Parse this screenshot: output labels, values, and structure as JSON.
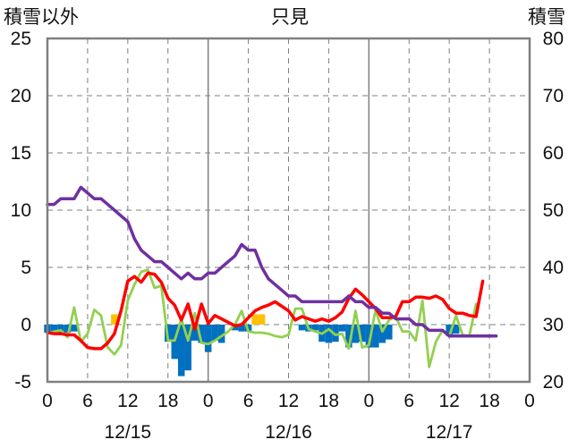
{
  "chart_data": {
    "type": "line",
    "title": "只見",
    "ylabel_left": "積雪以外",
    "ylabel_right": "積雪",
    "x_tick_labels": [
      "0",
      "6",
      "12",
      "18",
      "0",
      "6",
      "12",
      "18",
      "0",
      "6",
      "12",
      "18",
      "0"
    ],
    "date_labels": [
      "12/15",
      "12/16",
      "12/17"
    ],
    "ylim_left": [
      -5,
      25
    ],
    "ylim_right": [
      20,
      80
    ],
    "y_ticks_left": [
      -5,
      0,
      5,
      10,
      15,
      20,
      25
    ],
    "y_ticks_right": [
      20,
      30,
      40,
      50,
      60,
      70,
      80
    ],
    "grid": true,
    "colors": {
      "snow_depth": "#7030a0",
      "temperature": "#ff0000",
      "humidity_like": "#92d050",
      "precip_pos": "#ffc000",
      "precip_neg": "#0070c0"
    },
    "series": [
      {
        "key": "snow_depth",
        "axis": "right",
        "values": [
          51,
          51,
          52,
          52,
          52,
          54,
          53,
          52,
          52,
          51,
          50,
          49,
          48,
          45,
          43,
          42,
          41,
          41,
          40,
          39,
          38,
          39,
          38,
          38,
          39,
          39,
          40,
          41,
          42,
          44,
          43,
          43,
          40,
          38,
          37,
          36,
          35,
          35,
          34,
          34,
          34,
          34,
          34,
          34,
          34,
          35,
          34,
          34,
          33,
          33,
          32,
          32,
          31,
          31,
          31,
          30,
          30,
          29,
          29,
          29,
          28,
          28,
          28,
          28,
          28,
          28,
          28,
          28
        ]
      },
      {
        "key": "temperature",
        "axis": "left",
        "values": [
          -0.7,
          -0.8,
          -0.8,
          -0.9,
          -0.9,
          -1.4,
          -2.0,
          -2.1,
          -2.1,
          -1.6,
          -0.8,
          1.2,
          3.8,
          4.2,
          3.7,
          4.5,
          4.4,
          3.7,
          2.3,
          1.7,
          0.4,
          1.8,
          -0.4,
          1.8,
          0.1,
          0.8,
          0.5,
          0.2,
          -0.1,
          0.0,
          0.6,
          1.2,
          1.5,
          1.7,
          2.0,
          1.6,
          1.2,
          0.4,
          0.7,
          0.5,
          0.3,
          0.5,
          0.3,
          0.6,
          1.1,
          2.3,
          3.1,
          2.6,
          2.0,
          1.4,
          0.6,
          0.6,
          0.7,
          2.0,
          2.0,
          2.4,
          2.4,
          2.3,
          2.5,
          2.2,
          1.4,
          1.0,
          1.0,
          0.8,
          0.7,
          3.8
        ]
      },
      {
        "key": "humidity_like",
        "axis": "left",
        "values": [
          -0.8,
          -0.6,
          -0.5,
          -1.1,
          1.5,
          -1.5,
          -0.8,
          1.3,
          0.8,
          -2.0,
          -2.6,
          -1.8,
          2.1,
          3.5,
          4.6,
          4.8,
          3.2,
          3.4,
          -1.4,
          -1.4,
          0.5,
          -1.4,
          1.0,
          -1.6,
          -1.7,
          -1.4,
          -1.0,
          -0.6,
          0.0,
          1.2,
          -0.6,
          -0.7,
          -0.7,
          -0.8,
          -1.0,
          -1.1,
          -0.9,
          1.4,
          1.4,
          -0.4,
          -0.6,
          -0.8,
          -0.4,
          -0.9,
          -0.8,
          -2.1,
          1.2,
          -2.0,
          -1.8,
          1.3,
          -0.6,
          0.4,
          0.7,
          -0.6,
          -0.6,
          -1.4,
          2.1,
          -3.7,
          -1.5,
          -0.5,
          -1.0,
          0.8,
          -0.9,
          -1.0,
          1.8
        ]
      }
    ],
    "bars": {
      "axis": "left",
      "values": [
        -0.7,
        -0.7,
        -0.7,
        -0.7,
        -0.6,
        0,
        0,
        0,
        0,
        0,
        0.9,
        0,
        0,
        0,
        0,
        0,
        0,
        0,
        -1.5,
        -3.0,
        -4.5,
        -4.0,
        -1.4,
        -1.6,
        -2.4,
        -1.4,
        -1.6,
        0,
        -0.5,
        -0.6,
        -0.6,
        0.9,
        0.9,
        0,
        0,
        0,
        0,
        0,
        -0.5,
        -0.6,
        -0.5,
        -1.5,
        -1.6,
        -1.5,
        -0.6,
        -2.0,
        -1.6,
        -1.5,
        -2.0,
        -2.0,
        -1.6,
        -1.3,
        0,
        0,
        0,
        0,
        0,
        0,
        0,
        0,
        -1.0,
        -0.8,
        0,
        0,
        0,
        0
      ]
    }
  }
}
